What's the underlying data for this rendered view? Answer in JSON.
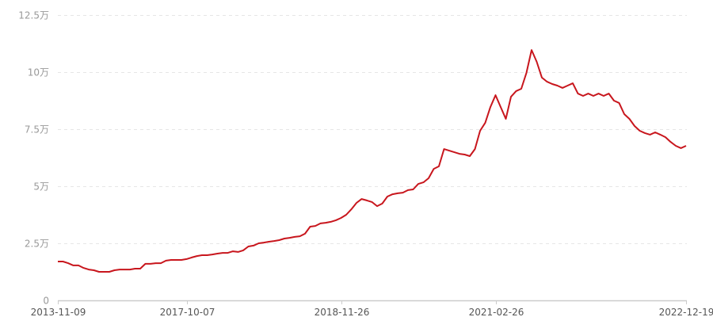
{
  "chart_data": {
    "type": "line",
    "title": "",
    "xlabel": "",
    "ylabel": "",
    "y_unit": "万",
    "ylim": [
      0,
      12.5
    ],
    "y_ticks": [
      0,
      2.5,
      5,
      7.5,
      10,
      12.5
    ],
    "y_tick_labels": [
      "0",
      "2.5万",
      "5万",
      "7.5万",
      "10万",
      "12.5万"
    ],
    "x_tick_labels": [
      {
        "index": 0,
        "label": "2013-11-09"
      },
      {
        "index": 25,
        "label": "2017-10-07"
      },
      {
        "index": 55,
        "label": "2018-11-26"
      },
      {
        "index": 85,
        "label": "2021-02-26"
      },
      {
        "index": 122,
        "label": "2022-12-19"
      }
    ],
    "grid": "horizontal dashed",
    "legend": "none",
    "line_color": "#c8161d",
    "series": [
      {
        "values": [
          1.7,
          1.7,
          1.63,
          1.53,
          1.53,
          1.42,
          1.35,
          1.32,
          1.25,
          1.25,
          1.25,
          1.32,
          1.35,
          1.35,
          1.35,
          1.39,
          1.39,
          1.6,
          1.6,
          1.63,
          1.63,
          1.74,
          1.77,
          1.77,
          1.77,
          1.81,
          1.88,
          1.94,
          1.98,
          1.98,
          2.01,
          2.05,
          2.08,
          2.08,
          2.15,
          2.12,
          2.19,
          2.36,
          2.4,
          2.5,
          2.53,
          2.57,
          2.6,
          2.64,
          2.71,
          2.74,
          2.78,
          2.81,
          2.92,
          3.23,
          3.26,
          3.37,
          3.4,
          3.44,
          3.51,
          3.61,
          3.75,
          3.99,
          4.27,
          4.44,
          4.38,
          4.31,
          4.13,
          4.24,
          4.55,
          4.65,
          4.69,
          4.72,
          4.83,
          4.86,
          5.1,
          5.17,
          5.35,
          5.76,
          5.87,
          6.63,
          6.56,
          6.49,
          6.42,
          6.39,
          6.32,
          6.63,
          7.43,
          7.78,
          8.47,
          8.99,
          8.47,
          7.95,
          8.92,
          9.17,
          9.27,
          9.97,
          10.97,
          10.45,
          9.76,
          9.58,
          9.48,
          9.41,
          9.31,
          9.41,
          9.51,
          9.06,
          8.96,
          9.06,
          8.96,
          9.06,
          8.96,
          9.06,
          8.75,
          8.65,
          8.16,
          7.95,
          7.64,
          7.43,
          7.33,
          7.26,
          7.36,
          7.26,
          7.15,
          6.94,
          6.77,
          6.67,
          6.77
        ]
      }
    ]
  }
}
